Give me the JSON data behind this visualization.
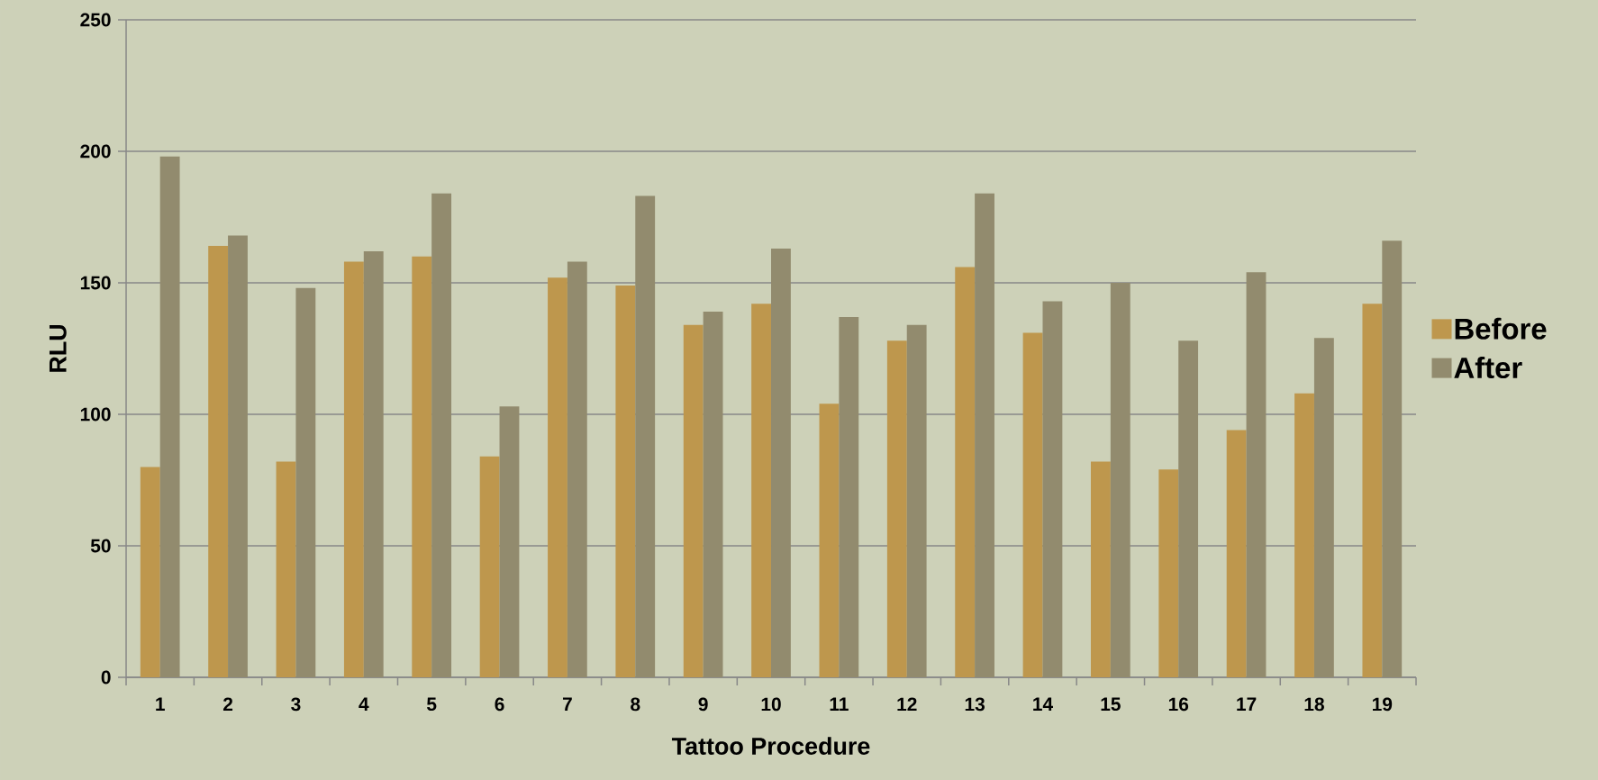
{
  "chart_data": {
    "type": "bar",
    "xlabel": "Tattoo Procedure",
    "ylabel": "RLU",
    "categories": [
      "1",
      "2",
      "3",
      "4",
      "5",
      "6",
      "7",
      "8",
      "9",
      "10",
      "11",
      "12",
      "13",
      "14",
      "15",
      "16",
      "17",
      "18",
      "19"
    ],
    "series": [
      {
        "name": "Before",
        "color": "#be974d",
        "values": [
          80,
          164,
          82,
          158,
          160,
          84,
          152,
          149,
          134,
          142,
          104,
          128,
          156,
          131,
          82,
          79,
          94,
          108,
          142
        ]
      },
      {
        "name": "After",
        "color": "#928b6e",
        "values": [
          198,
          168,
          148,
          162,
          184,
          103,
          158,
          183,
          139,
          163,
          137,
          134,
          184,
          143,
          150,
          128,
          154,
          129,
          166
        ]
      }
    ],
    "ylim": [
      0,
      250
    ],
    "yticks": [
      0,
      50,
      100,
      150,
      200,
      250
    ],
    "grid": "y",
    "legend": "right"
  }
}
